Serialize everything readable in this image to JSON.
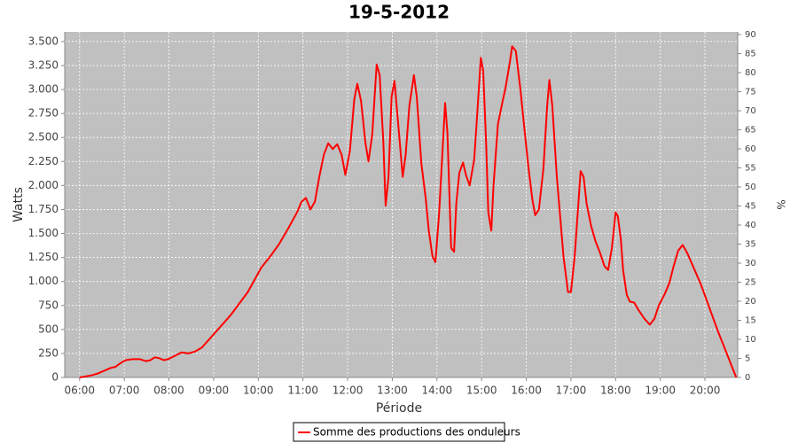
{
  "chart_data": {
    "type": "line",
    "title": "19-5-2012",
    "x_label": "Période",
    "y_label": "Watts",
    "y2_label": "%",
    "x": [
      "06:00",
      "06:15",
      "06:24",
      "06:33",
      "06:42",
      "06:48",
      "06:55",
      "07:02",
      "07:11",
      "07:21",
      "07:29",
      "07:35",
      "07:41",
      "07:47",
      "07:53",
      "07:59",
      "08:09",
      "08:17",
      "08:26",
      "08:35",
      "08:44",
      "08:59",
      "09:23",
      "09:46",
      "10:04",
      "10:16",
      "10:28",
      "10:40",
      "10:52",
      "10:58",
      "11:04",
      "11:10",
      "11:16",
      "11:22",
      "11:28",
      "11:34",
      "11:40",
      "11:46",
      "11:52",
      "11:57",
      "12:03",
      "12:09",
      "12:13",
      "12:18",
      "12:24",
      "12:28",
      "12:33",
      "12:39",
      "12:43",
      "12:48",
      "12:51",
      "12:55",
      "12:59",
      "13:03",
      "13:08",
      "13:14",
      "13:18",
      "13:23",
      "13:29",
      "13:33",
      "13:39",
      "13:45",
      "13:49",
      "13:54",
      "13:58",
      "14:03",
      "14:11",
      "14:14",
      "14:19",
      "14:23",
      "14:26",
      "14:30",
      "14:35",
      "14:39",
      "14:44",
      "14:50",
      "14:54",
      "14:59",
      "15:02",
      "15:06",
      "15:09",
      "15:13",
      "15:16",
      "15:22",
      "15:28",
      "15:32",
      "15:38",
      "15:41",
      "15:46",
      "15:52",
      "15:58",
      "16:03",
      "16:08",
      "16:12",
      "16:17",
      "16:23",
      "16:28",
      "16:31",
      "16:35",
      "16:41",
      "16:46",
      "16:50",
      "16:56",
      "17:00",
      "17:05",
      "17:10",
      "17:13",
      "17:17",
      "17:21",
      "17:27",
      "17:33",
      "17:39",
      "17:45",
      "17:50",
      "17:55",
      "18:00",
      "18:03",
      "18:07",
      "18:10",
      "18:15",
      "18:19",
      "18:25",
      "18:31",
      "18:39",
      "18:46",
      "18:52",
      "18:58",
      "19:06",
      "19:12",
      "19:18",
      "19:24",
      "19:30",
      "19:36",
      "19:54",
      "20:18",
      "20:42"
    ],
    "series": [
      {
        "name": "Somme des productions des onduleurs",
        "color": "#ff0000",
        "values": [
          0,
          20,
          40,
          70,
          100,
          110,
          150,
          180,
          190,
          190,
          170,
          180,
          210,
          200,
          180,
          190,
          230,
          260,
          250,
          270,
          310,
          440,
          650,
          890,
          1145,
          1260,
          1390,
          1550,
          1720,
          1830,
          1870,
          1750,
          1830,
          2090,
          2320,
          2440,
          2380,
          2430,
          2320,
          2110,
          2360,
          2900,
          3060,
          2880,
          2440,
          2250,
          2530,
          3260,
          3150,
          2460,
          1790,
          2090,
          2920,
          3090,
          2640,
          2090,
          2320,
          2830,
          3150,
          2920,
          2230,
          1860,
          1530,
          1260,
          1200,
          1720,
          2860,
          2550,
          1350,
          1310,
          1810,
          2130,
          2240,
          2110,
          2000,
          2270,
          2730,
          3330,
          3200,
          2460,
          1720,
          1530,
          2000,
          2640,
          2870,
          3010,
          3290,
          3450,
          3400,
          3010,
          2550,
          2180,
          1860,
          1690,
          1750,
          2180,
          2830,
          3100,
          2830,
          2090,
          1630,
          1260,
          890,
          890,
          1260,
          1810,
          2150,
          2090,
          1810,
          1580,
          1420,
          1300,
          1160,
          1120,
          1350,
          1720,
          1680,
          1440,
          1120,
          860,
          790,
          780,
          700,
          610,
          550,
          610,
          750,
          870,
          980,
          1160,
          1320,
          1380,
          1300,
          980,
          470,
          0
        ]
      }
    ],
    "xlim": [
      "05:40",
      "20:44"
    ],
    "xticks": [
      "06:00",
      "07:00",
      "08:00",
      "09:00",
      "10:00",
      "11:00",
      "12:00",
      "13:00",
      "14:00",
      "15:00",
      "16:00",
      "17:00",
      "18:00",
      "19:00",
      "20:00"
    ],
    "ylim": [
      0,
      3600
    ],
    "yticks": [
      0,
      250,
      500,
      750,
      {
        "value": 1000,
        "label": "1.000"
      },
      {
        "value": 1250,
        "label": "1.250"
      },
      {
        "value": 1500,
        "label": "1.500"
      },
      {
        "value": 1750,
        "label": "1.750"
      },
      {
        "value": 2000,
        "label": "2.000"
      },
      {
        "value": 2250,
        "label": "2.250"
      },
      {
        "value": 2500,
        "label": "2.500"
      },
      {
        "value": 2750,
        "label": "2.750"
      },
      {
        "value": 3000,
        "label": "3.000"
      },
      {
        "value": 3250,
        "label": "3.250"
      },
      {
        "value": 3500,
        "label": "3.500"
      }
    ],
    "y2lim": [
      0,
      90.7
    ],
    "y2ticks": [
      0,
      5,
      10,
      15,
      20,
      25,
      30,
      35,
      40,
      45,
      50,
      55,
      60,
      65,
      70,
      75,
      80,
      85,
      90
    ],
    "grid": true,
    "legend": "bottom"
  }
}
